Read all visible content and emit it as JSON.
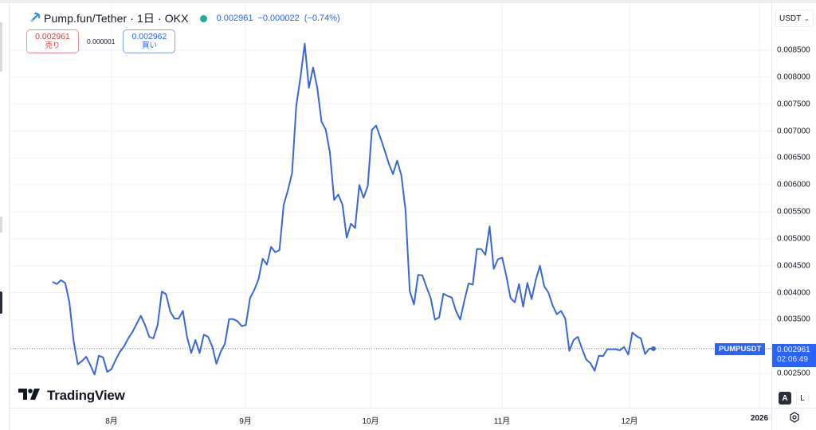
{
  "legend": {
    "symbol_title": "Pump.fun/Tether · 1日 · OKX",
    "last_price": "0.002961",
    "change": "−0.000022",
    "change_pct": "(−0.74%)",
    "status_color": "#22ab94"
  },
  "trade": {
    "sell_price": "0.002961",
    "sell_label": "売り",
    "spread": "0.000001",
    "buy_price": "0.002962",
    "buy_label": "買い"
  },
  "price_axis": {
    "currency": "USDT",
    "ticks": [
      "0.008500",
      "0.008000",
      "0.007500",
      "0.007000",
      "0.006500",
      "0.006000",
      "0.005500",
      "0.005000",
      "0.004500",
      "0.004000",
      "0.003500",
      "0.002500"
    ],
    "current_price": "0.002961",
    "countdown": "02:06:49",
    "symbol_badge": "PUMPUSDT",
    "auto_label": "A",
    "log_label": "L"
  },
  "time_axis": {
    "ticks": [
      "8月",
      "9月",
      "10月",
      "11月",
      "12月",
      "2026"
    ]
  },
  "branding": {
    "logo_text": "TradingView"
  },
  "colors": {
    "line": "#3a66d6",
    "accent": "#2962ff",
    "sell": "#e03a3a",
    "grid": "#f0f2f5"
  },
  "chart_data": {
    "type": "line",
    "title": "Pump.fun/Tether · 1日 · OKX",
    "xlabel": "",
    "ylabel": "USDT",
    "ylim": [
      0.0022,
      0.0089
    ],
    "grid": true,
    "legend_position": "top-left",
    "x_ticks": [
      "8月",
      "9月",
      "10月",
      "11月",
      "12月",
      "2026"
    ],
    "y_ticks": [
      0.0025,
      0.0035,
      0.004,
      0.0045,
      0.005,
      0.0055,
      0.006,
      0.0065,
      0.007,
      0.0075,
      0.008,
      0.0085
    ],
    "series": [
      {
        "name": "PUMPUSDT",
        "values": [
          0.0042,
          0.00416,
          0.00423,
          0.00418,
          0.00382,
          0.0031,
          0.00267,
          0.00273,
          0.00281,
          0.00265,
          0.00248,
          0.00283,
          0.0028,
          0.00253,
          0.00258,
          0.00275,
          0.0029,
          0.003,
          0.00315,
          0.00327,
          0.00342,
          0.00357,
          0.0034,
          0.00318,
          0.00315,
          0.0034,
          0.00402,
          0.00397,
          0.00365,
          0.00352,
          0.00352,
          0.00366,
          0.00318,
          0.00288,
          0.00312,
          0.00288,
          0.00322,
          0.00318,
          0.003,
          0.00268,
          0.0029,
          0.00305,
          0.00351,
          0.00351,
          0.00347,
          0.00338,
          0.0034,
          0.0039,
          0.00405,
          0.00425,
          0.00463,
          0.00452,
          0.00485,
          0.00475,
          0.00479,
          0.00563,
          0.0059,
          0.00622,
          0.00747,
          0.008,
          0.00862,
          0.0078,
          0.00818,
          0.0078,
          0.00717,
          0.00703,
          0.0066,
          0.00572,
          0.00582,
          0.00563,
          0.00502,
          0.00528,
          0.0052,
          0.006,
          0.00576,
          0.00598,
          0.00702,
          0.0071,
          0.00688,
          0.00665,
          0.0064,
          0.0062,
          0.00645,
          0.00618,
          0.00553,
          0.00403,
          0.00378,
          0.00433,
          0.00432,
          0.0041,
          0.0039,
          0.0035,
          0.00354,
          0.00398,
          0.00394,
          0.00391,
          0.00366,
          0.0035,
          0.00385,
          0.00417,
          0.00415,
          0.00481,
          0.00481,
          0.0047,
          0.00523,
          0.00444,
          0.00462,
          0.00465,
          0.0043,
          0.0039,
          0.00382,
          0.00416,
          0.00374,
          0.00418,
          0.00388,
          0.00424,
          0.0045,
          0.00412,
          0.004,
          0.00376,
          0.0036,
          0.00366,
          0.00352,
          0.00292,
          0.00312,
          0.00318,
          0.00296,
          0.00276,
          0.00269,
          0.00255,
          0.00283,
          0.00282,
          0.00295,
          0.00295,
          0.00295,
          0.00293,
          0.00299,
          0.00285,
          0.00326,
          0.00319,
          0.00315,
          0.00286,
          0.00296,
          0.00296
        ]
      }
    ]
  }
}
